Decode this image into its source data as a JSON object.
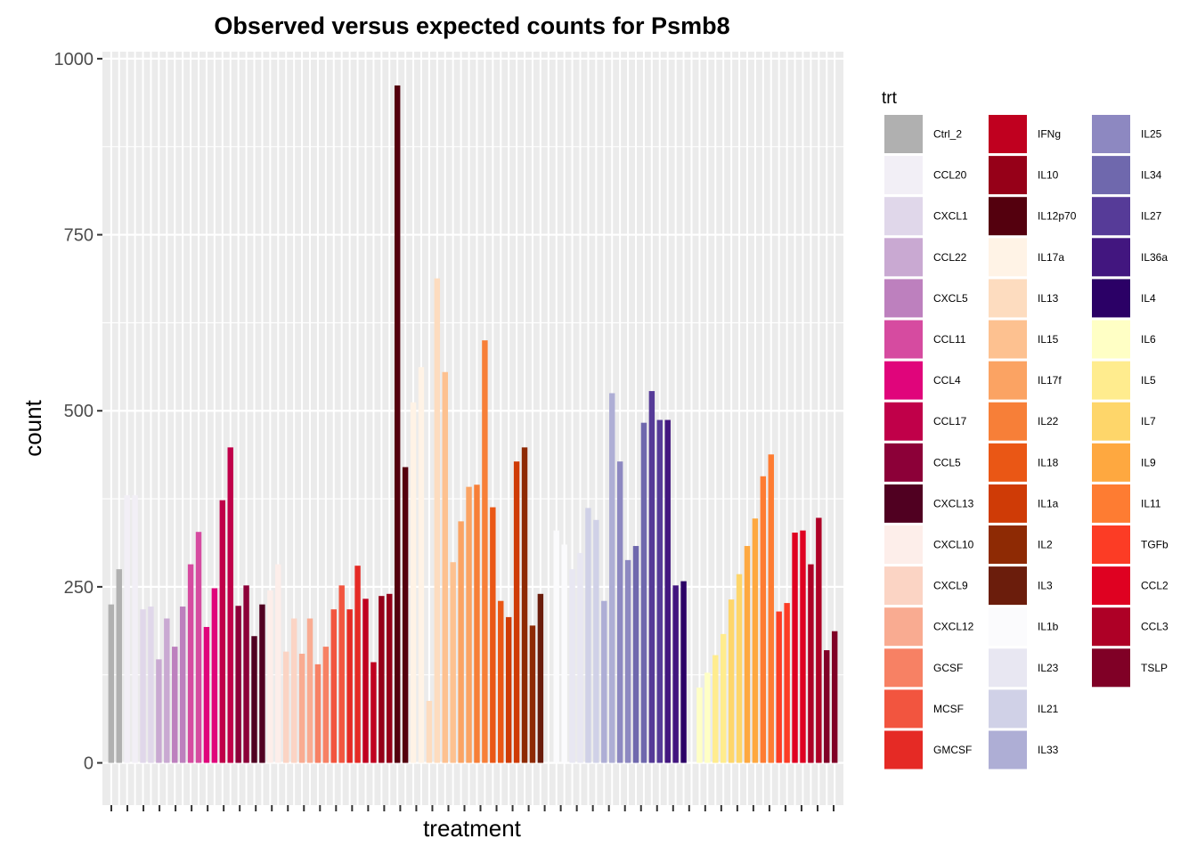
{
  "chart_data": {
    "type": "bar",
    "title": "Observed versus expected counts for Psmb8",
    "xlabel": "treatment",
    "ylabel": "count",
    "ylim": [
      -60,
      1010
    ],
    "yticks": [
      0,
      250,
      500,
      750,
      1000
    ],
    "ytick_labels": [
      "0",
      "250",
      "500",
      "750",
      "1000"
    ],
    "grid": true,
    "legend": {
      "title": "trt",
      "position": "right",
      "items": [
        {
          "label": "Ctrl_2",
          "color": "#b0b0b0"
        },
        {
          "label": "CCL20",
          "color": "#f2eff6"
        },
        {
          "label": "CXCL1",
          "color": "#e0d7ea"
        },
        {
          "label": "CCL22",
          "color": "#c9a9d2"
        },
        {
          "label": "CXCL5",
          "color": "#bd80be"
        },
        {
          "label": "CCL11",
          "color": "#d64ba0"
        },
        {
          "label": "CCL4",
          "color": "#e0057b"
        },
        {
          "label": "CCL17",
          "color": "#c00049"
        },
        {
          "label": "CCL5",
          "color": "#8c0038"
        },
        {
          "label": "CXCL13",
          "color": "#500021"
        },
        {
          "label": "CXCL10",
          "color": "#fdeeea"
        },
        {
          "label": "CXCL9",
          "color": "#fbd4c4"
        },
        {
          "label": "CXCL12",
          "color": "#f9ab91"
        },
        {
          "label": "GCSF",
          "color": "#f78164"
        },
        {
          "label": "MCSF",
          "color": "#f2553f"
        },
        {
          "label": "GMCSF",
          "color": "#e52a25"
        },
        {
          "label": "IFNg",
          "color": "#c0001f"
        },
        {
          "label": "IL10",
          "color": "#960018"
        },
        {
          "label": "IL12p70",
          "color": "#54000e"
        },
        {
          "label": "IL17a",
          "color": "#fff3e6"
        },
        {
          "label": "IL13",
          "color": "#fddcbf"
        },
        {
          "label": "IL15",
          "color": "#fdc190"
        },
        {
          "label": "IL17f",
          "color": "#fba363"
        },
        {
          "label": "IL22",
          "color": "#f77f38"
        },
        {
          "label": "IL18",
          "color": "#ea5715"
        },
        {
          "label": "IL1a",
          "color": "#cf3b06"
        },
        {
          "label": "IL2",
          "color": "#8e2a04"
        },
        {
          "label": "IL3",
          "color": "#6b1d0c"
        },
        {
          "label": "IL1b",
          "color": "#fbfbfd"
        },
        {
          "label": "IL23",
          "color": "#e8e7f2"
        },
        {
          "label": "IL21",
          "color": "#d0d1e7"
        },
        {
          "label": "IL33",
          "color": "#aeaed5"
        },
        {
          "label": "IL25",
          "color": "#8d88c1"
        },
        {
          "label": "IL34",
          "color": "#6f68ad"
        },
        {
          "label": "IL27",
          "color": "#563b98"
        },
        {
          "label": "IL36a",
          "color": "#42167f"
        },
        {
          "label": "IL4",
          "color": "#2b0066"
        },
        {
          "label": "IL6",
          "color": "#ffffc5"
        },
        {
          "label": "IL5",
          "color": "#ffec8e"
        },
        {
          "label": "IL7",
          "color": "#fed66a"
        },
        {
          "label": "IL9",
          "color": "#fea840"
        },
        {
          "label": "IL11",
          "color": "#fe7c32"
        },
        {
          "label": "TGFb",
          "color": "#fc3c25"
        },
        {
          "label": "CCL2",
          "color": "#df0121"
        },
        {
          "label": "CCL3",
          "color": "#ae0026"
        },
        {
          "label": "TSLP",
          "color": "#800026"
        }
      ]
    },
    "series": [
      {
        "treatment": "Ctrl_2",
        "values": [
          225,
          275
        ]
      },
      {
        "treatment": "CCL20",
        "values": [
          380,
          380
        ]
      },
      {
        "treatment": "CXCL1",
        "values": [
          218,
          222
        ]
      },
      {
        "treatment": "CCL22",
        "values": [
          147,
          205
        ]
      },
      {
        "treatment": "CXCL5",
        "values": [
          165,
          222
        ]
      },
      {
        "treatment": "CCL11",
        "values": [
          282,
          328
        ]
      },
      {
        "treatment": "CCL4",
        "values": [
          193,
          248
        ]
      },
      {
        "treatment": "CCL17",
        "values": [
          373,
          448
        ]
      },
      {
        "treatment": "CCL5",
        "values": [
          223,
          252
        ]
      },
      {
        "treatment": "CXCL13",
        "values": [
          180,
          225
        ]
      },
      {
        "treatment": "CXCL10",
        "values": [
          245,
          282
        ]
      },
      {
        "treatment": "CXCL9",
        "values": [
          158,
          205
        ]
      },
      {
        "treatment": "CXCL12",
        "values": [
          155,
          205
        ]
      },
      {
        "treatment": "GCSF",
        "values": [
          140,
          165
        ]
      },
      {
        "treatment": "MCSF",
        "values": [
          218,
          252
        ]
      },
      {
        "treatment": "GMCSF",
        "values": [
          218,
          280
        ]
      },
      {
        "treatment": "IFNg",
        "values": [
          233,
          143
        ]
      },
      {
        "treatment": "IL10",
        "values": [
          237,
          240
        ]
      },
      {
        "treatment": "IL12p70",
        "values": [
          962,
          420
        ]
      },
      {
        "treatment": "IL17a",
        "values": [
          512,
          562
        ]
      },
      {
        "treatment": "IL13",
        "values": [
          88,
          688
        ]
      },
      {
        "treatment": "IL15",
        "values": [
          555,
          285
        ]
      },
      {
        "treatment": "IL17f",
        "values": [
          343,
          392
        ]
      },
      {
        "treatment": "IL22",
        "values": [
          395,
          600
        ]
      },
      {
        "treatment": "IL18",
        "values": [
          363,
          230
        ]
      },
      {
        "treatment": "IL1a",
        "values": [
          207,
          428
        ]
      },
      {
        "treatment": "IL2",
        "values": [
          448,
          195
        ]
      },
      {
        "treatment": "IL3",
        "values": [
          240,
          0
        ]
      },
      {
        "treatment": "IL1b",
        "values": [
          330,
          310
        ]
      },
      {
        "treatment": "IL23",
        "values": [
          275,
          298
        ]
      },
      {
        "treatment": "IL21",
        "values": [
          362,
          345
        ]
      },
      {
        "treatment": "IL33",
        "values": [
          230,
          525
        ]
      },
      {
        "treatment": "IL25",
        "values": [
          428,
          288
        ]
      },
      {
        "treatment": "IL34",
        "values": [
          308,
          483
        ]
      },
      {
        "treatment": "IL27",
        "values": [
          528,
          487
        ]
      },
      {
        "treatment": "IL36a",
        "values": [
          487,
          252
        ]
      },
      {
        "treatment": "IL4",
        "values": [
          258,
          0
        ]
      },
      {
        "treatment": "IL6",
        "values": [
          107,
          128
        ]
      },
      {
        "treatment": "IL5",
        "values": [
          153,
          183
        ]
      },
      {
        "treatment": "IL7",
        "values": [
          232,
          268
        ]
      },
      {
        "treatment": "IL9",
        "values": [
          308,
          347
        ]
      },
      {
        "treatment": "IL11",
        "values": [
          407,
          438
        ]
      },
      {
        "treatment": "TGFb",
        "values": [
          215,
          227
        ]
      },
      {
        "treatment": "CCL2",
        "values": [
          327,
          330
        ]
      },
      {
        "treatment": "CCL3",
        "values": [
          282,
          348
        ]
      },
      {
        "treatment": "TSLP",
        "values": [
          160,
          187
        ]
      }
    ]
  }
}
